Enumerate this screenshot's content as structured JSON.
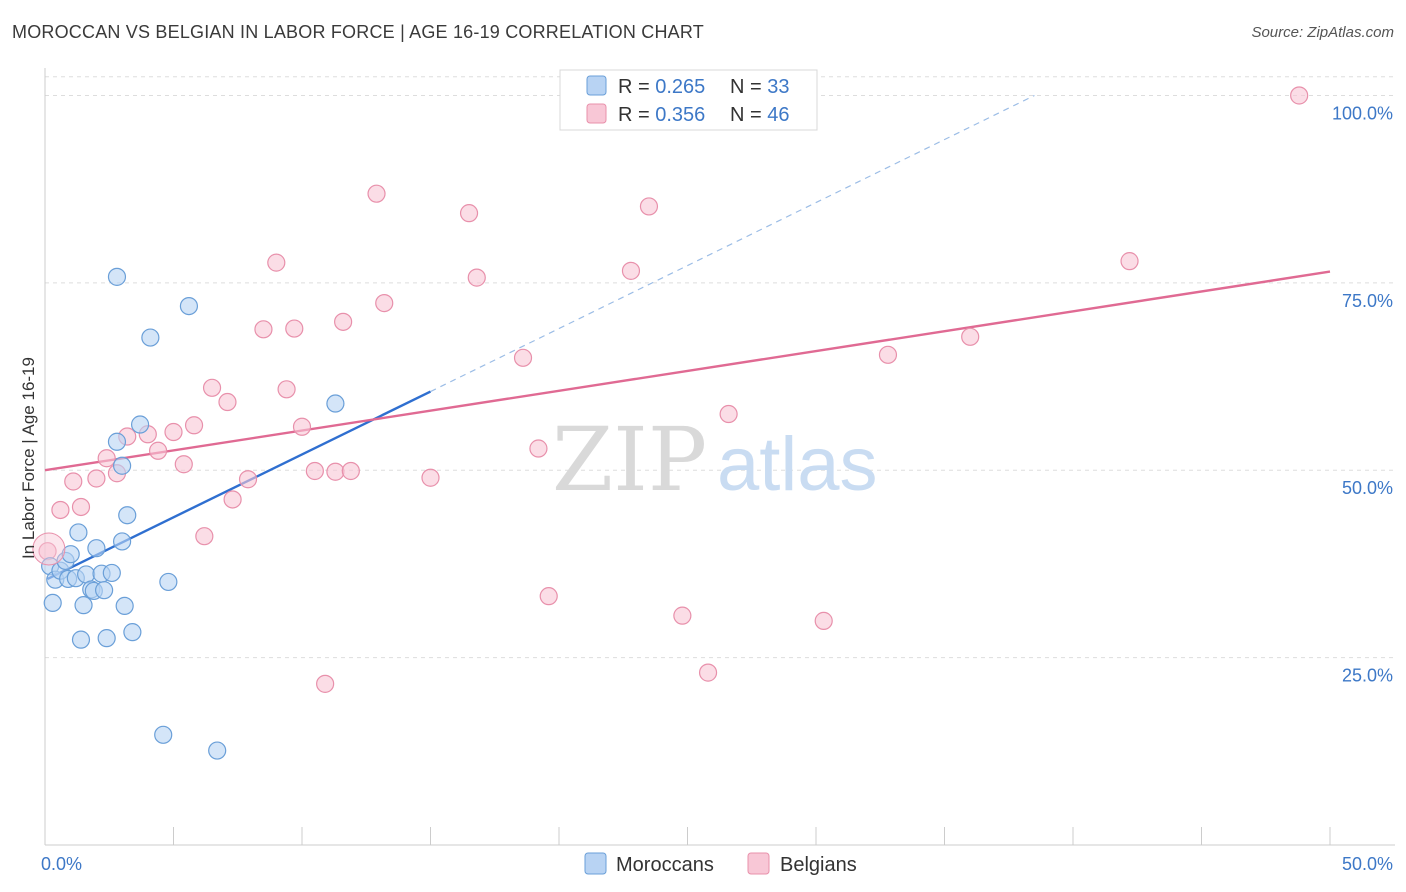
{
  "title": "MOROCCAN VS BELGIAN IN LABOR FORCE | AGE 16-19 CORRELATION CHART",
  "source": "Source: ZipAtlas.com",
  "watermark": {
    "part1": "ZIP",
    "part2": "atlas"
  },
  "colors": {
    "moroccans_fill": "#b8d3f3",
    "moroccans_stroke": "#6a9fd8",
    "moroccans_line": "#2f6fd0",
    "belgians_fill": "#f8c7d6",
    "belgians_stroke": "#e890ab",
    "belgians_line": "#e06a93",
    "tick_text": "#3d78c7",
    "grid": "#dddddd"
  },
  "legend_top": [
    {
      "r_label": "R = ",
      "r_value": "0.265",
      "n_label": "N = ",
      "n_value": "33",
      "series": "moroccans"
    },
    {
      "r_label": "R = ",
      "r_value": "0.356",
      "n_label": "N = ",
      "n_value": "46",
      "series": "belgians"
    }
  ],
  "legend_bottom": [
    {
      "label": "Moroccans",
      "series": "moroccans"
    },
    {
      "label": "Belgians",
      "series": "belgians"
    }
  ],
  "chart_data": {
    "type": "scatter",
    "title": "MOROCCAN VS BELGIAN IN LABOR FORCE | AGE 16-19 CORRELATION CHART",
    "xlabel": "",
    "ylabel": "In Labor Force | Age 16-19",
    "xlim": [
      0,
      50
    ],
    "ylim": [
      0,
      103
    ],
    "x_tick_labels": [
      {
        "value": 0,
        "label": "0.0%"
      },
      {
        "value": 50,
        "label": "50.0%"
      }
    ],
    "y_tick_labels": [
      {
        "value": 25,
        "label": "25.0%"
      },
      {
        "value": 50,
        "label": "50.0%"
      },
      {
        "value": 75,
        "label": "75.0%"
      },
      {
        "value": 100,
        "label": "100.0%"
      }
    ],
    "series": [
      {
        "name": "Moroccans",
        "key": "moroccans",
        "R": 0.265,
        "N": 33,
        "trend": {
          "x0": 0.1,
          "y0": 35.5,
          "x1": 15.0,
          "y1": 60.5,
          "dashed_to_x": 38.5,
          "dashed_to_y": 100.0
        },
        "points": [
          [
            0.2,
            37.2
          ],
          [
            0.3,
            32.3
          ],
          [
            0.4,
            35.4
          ],
          [
            0.6,
            36.6
          ],
          [
            0.8,
            37.9
          ],
          [
            0.9,
            35.5
          ],
          [
            1.0,
            38.8
          ],
          [
            1.2,
            35.6
          ],
          [
            1.3,
            41.7
          ],
          [
            1.4,
            27.4
          ],
          [
            1.5,
            32.0
          ],
          [
            1.6,
            36.1
          ],
          [
            1.8,
            34.1
          ],
          [
            1.9,
            33.9
          ],
          [
            2.0,
            39.6
          ],
          [
            2.2,
            36.2
          ],
          [
            2.4,
            27.6
          ],
          [
            2.6,
            36.3
          ],
          [
            2.8,
            53.8
          ],
          [
            2.8,
            75.8
          ],
          [
            3.0,
            50.6
          ],
          [
            3.1,
            31.9
          ],
          [
            3.2,
            44.0
          ],
          [
            3.4,
            28.4
          ],
          [
            3.7,
            56.1
          ],
          [
            4.1,
            67.7
          ],
          [
            4.6,
            14.7
          ],
          [
            4.8,
            35.1
          ],
          [
            5.6,
            71.9
          ],
          [
            6.7,
            12.6
          ],
          [
            11.3,
            58.9
          ],
          [
            3.0,
            40.5
          ],
          [
            2.3,
            34.0
          ]
        ]
      },
      {
        "name": "Belgians",
        "key": "belgians",
        "R": 0.356,
        "N": 46,
        "trend": {
          "x0": 0.0,
          "y0": 50.0,
          "x1": 50.0,
          "y1": 76.5
        },
        "points": [
          [
            0.1,
            39.2
          ],
          [
            0.6,
            44.7
          ],
          [
            1.1,
            48.5
          ],
          [
            1.4,
            45.1
          ],
          [
            2.0,
            48.9
          ],
          [
            2.4,
            51.6
          ],
          [
            2.8,
            49.6
          ],
          [
            3.2,
            54.5
          ],
          [
            4.0,
            54.8
          ],
          [
            4.4,
            52.6
          ],
          [
            5.0,
            55.1
          ],
          [
            5.4,
            50.8
          ],
          [
            5.8,
            56.0
          ],
          [
            6.2,
            41.2
          ],
          [
            6.5,
            61.0
          ],
          [
            7.1,
            59.1
          ],
          [
            7.3,
            46.1
          ],
          [
            7.9,
            48.8
          ],
          [
            8.5,
            68.8
          ],
          [
            9.0,
            77.7
          ],
          [
            9.4,
            60.8
          ],
          [
            9.7,
            68.9
          ],
          [
            10.0,
            55.8
          ],
          [
            10.5,
            49.9
          ],
          [
            10.9,
            21.5
          ],
          [
            11.3,
            49.8
          ],
          [
            11.6,
            69.8
          ],
          [
            11.9,
            49.9
          ],
          [
            12.9,
            86.9
          ],
          [
            13.2,
            72.3
          ],
          [
            16.5,
            84.3
          ],
          [
            16.8,
            75.7
          ],
          [
            18.6,
            65.0
          ],
          [
            19.2,
            52.9
          ],
          [
            19.6,
            33.2
          ],
          [
            22.8,
            76.6
          ],
          [
            23.5,
            85.2
          ],
          [
            24.8,
            30.6
          ],
          [
            25.8,
            23.0
          ],
          [
            26.6,
            57.5
          ],
          [
            30.3,
            29.9
          ],
          [
            32.8,
            65.4
          ],
          [
            36.0,
            67.8
          ],
          [
            42.2,
            77.9
          ],
          [
            48.8,
            100.0
          ],
          [
            15.0,
            49.0
          ]
        ]
      }
    ]
  },
  "axis": {
    "ylabel": "In Labor Force | Age 16-19"
  }
}
